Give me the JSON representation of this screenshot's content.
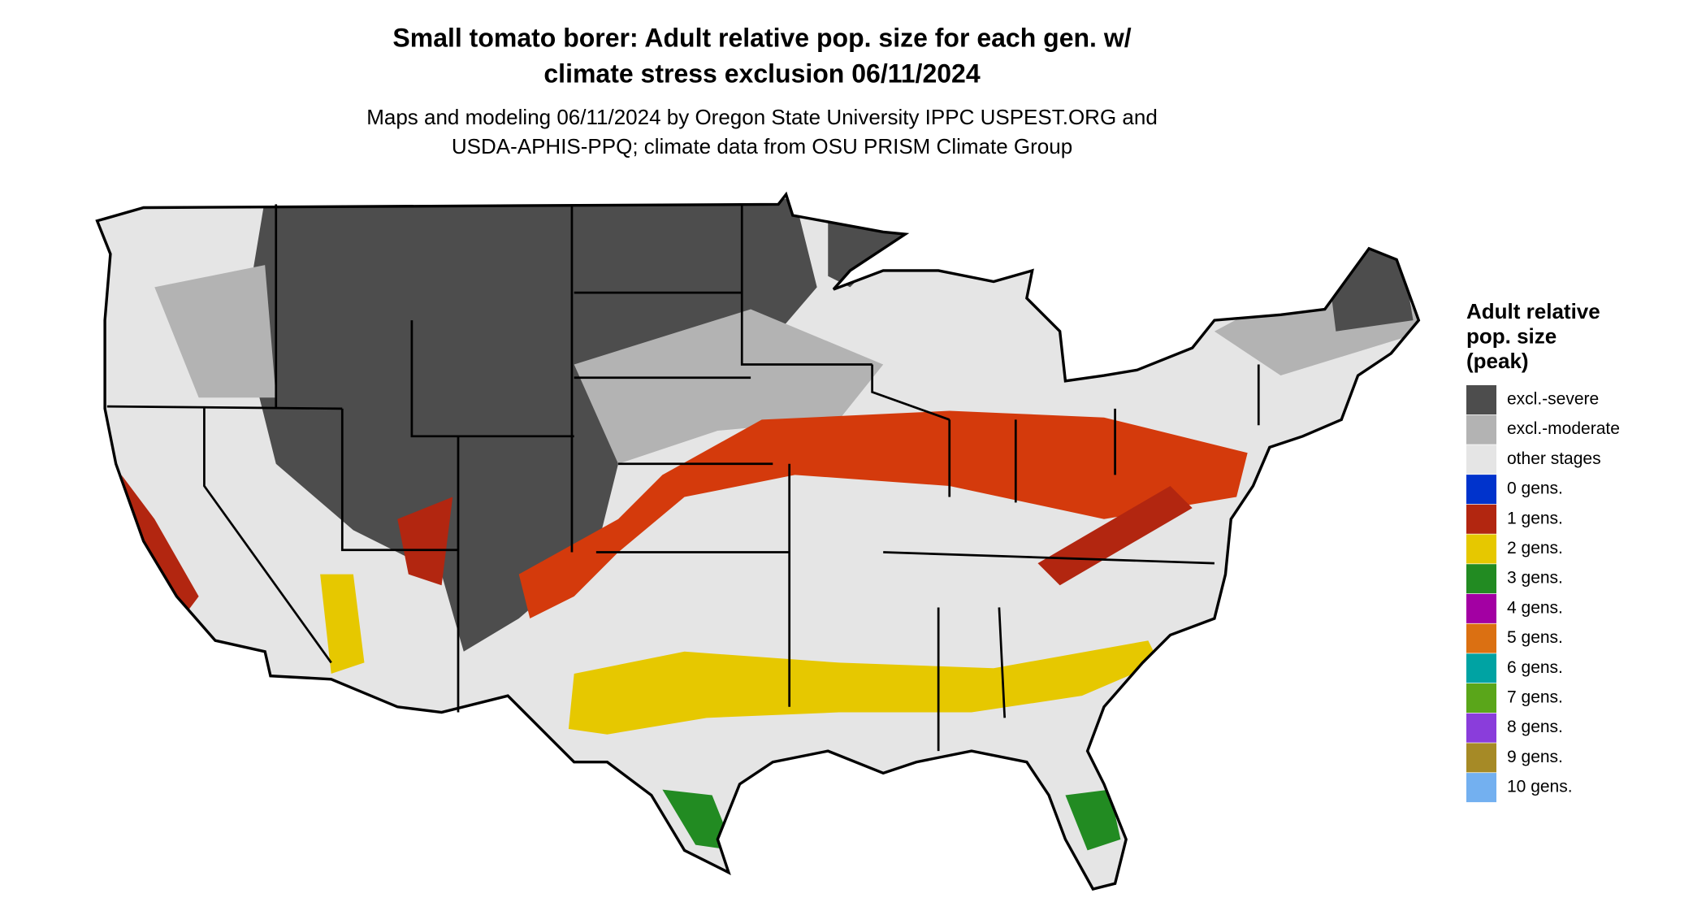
{
  "header": {
    "title": [
      "Small tomato borer: Adult relative pop. size for each gen. w/",
      "climate stress exclusion 06/11/2024"
    ],
    "subtitle": [
      "Maps and modeling 06/11/2024 by Oregon State University IPPC USPEST.ORG and",
      "USDA-APHIS-PPQ; climate data from OSU PRISM Climate Group"
    ]
  },
  "legend": {
    "title": [
      "Adult relative",
      "pop. size",
      "(peak)"
    ],
    "items": [
      {
        "label": "excl.-severe",
        "color": "#4d4d4d"
      },
      {
        "label": "excl.-moderate",
        "color": "#b3b3b3"
      },
      {
        "label": "other stages",
        "color": "#e5e5e5"
      },
      {
        "label": "0 gens.",
        "color": "#0033cc"
      },
      {
        "label": "1 gens.",
        "color": "#b22610"
      },
      {
        "label": "2 gens.",
        "color": "#e6c800"
      },
      {
        "label": "3 gens.",
        "color": "#228b22"
      },
      {
        "label": "4 gens.",
        "color": "#a300a3"
      },
      {
        "label": "5 gens.",
        "color": "#db7012"
      },
      {
        "label": "6 gens.",
        "color": "#00a3a3"
      },
      {
        "label": "7 gens.",
        "color": "#5aa61a"
      },
      {
        "label": "8 gens.",
        "color": "#8a3ddb"
      },
      {
        "label": "9 gens.",
        "color": "#a68a26"
      },
      {
        "label": "10 gens.",
        "color": "#73b0f0"
      }
    ]
  }
}
